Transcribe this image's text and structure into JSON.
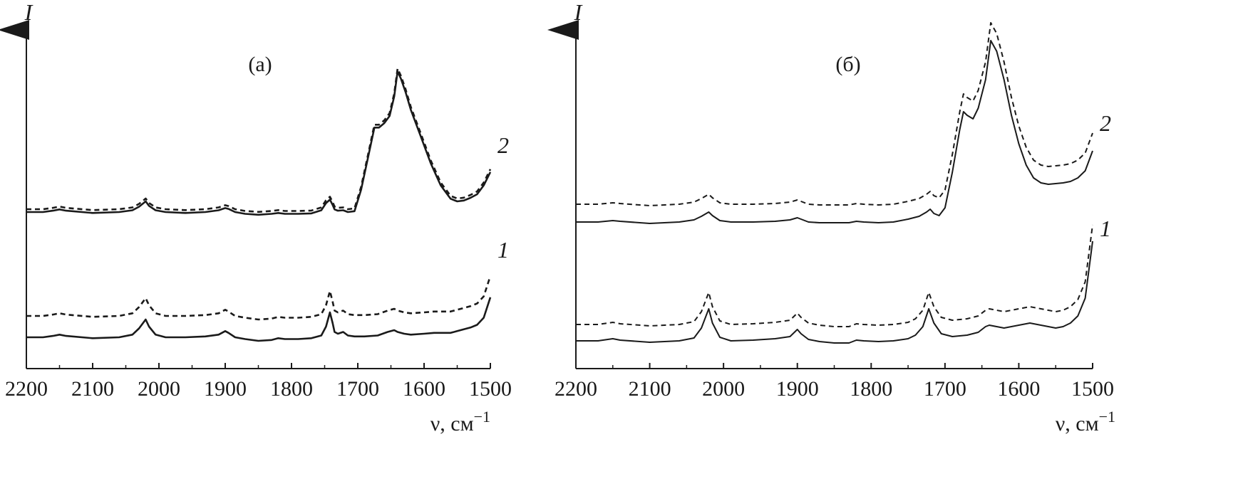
{
  "chart_data": [
    {
      "type": "line",
      "panel_label": "(а)",
      "y_axis_label": "I",
      "x_axis_label": "ν, см",
      "x_axis_label_superscript": "−1",
      "xlim": [
        2200,
        1500
      ],
      "x_ticks": [
        "2200",
        "2100",
        "2000",
        "1900",
        "1800",
        "1700",
        "1600",
        "1500"
      ],
      "y_ticks": [],
      "curve_labels": [
        "2",
        "1"
      ],
      "series": [
        {
          "label": "2",
          "style": "solid",
          "x": [
            2200,
            2175,
            2160,
            2150,
            2140,
            2100,
            2060,
            2040,
            2030,
            2020,
            2015,
            2005,
            1990,
            1960,
            1930,
            1910,
            1900,
            1895,
            1885,
            1870,
            1850,
            1830,
            1820,
            1810,
            1790,
            1770,
            1755,
            1748,
            1742,
            1738,
            1735,
            1730,
            1722,
            1715,
            1705,
            1695,
            1685,
            1675,
            1668,
            1660,
            1652,
            1645,
            1640,
            1635,
            1628,
            1620,
            1605,
            1590,
            1575,
            1560,
            1550,
            1540,
            1530,
            1520,
            1510,
            1500
          ],
          "y": [
            0,
            0,
            1.5,
            3,
            1.5,
            -1,
            0,
            2,
            6,
            12,
            7,
            2,
            0,
            -1,
            0,
            2,
            4.5,
            3.5,
            0,
            -2,
            -3,
            -2,
            -1,
            -2,
            -2,
            -1.5,
            2,
            10,
            14,
            8,
            3,
            1.5,
            2,
            0,
            1,
            25,
            60,
            95,
            95,
            100,
            108,
            130,
            158,
            150,
            135,
            115,
            85,
            55,
            30,
            15,
            12,
            13,
            16,
            20,
            30,
            45
          ]
        },
        {
          "label": "2",
          "style": "dashed",
          "x": [
            2200,
            2175,
            2160,
            2150,
            2140,
            2100,
            2060,
            2040,
            2030,
            2020,
            2015,
            2005,
            1990,
            1960,
            1930,
            1910,
            1900,
            1895,
            1885,
            1870,
            1850,
            1830,
            1820,
            1810,
            1790,
            1770,
            1755,
            1748,
            1742,
            1738,
            1735,
            1730,
            1722,
            1715,
            1705,
            1695,
            1685,
            1675,
            1668,
            1660,
            1652,
            1645,
            1640,
            1635,
            1628,
            1620,
            1605,
            1590,
            1575,
            1560,
            1550,
            1540,
            1530,
            1520,
            1510,
            1500
          ],
          "y": [
            0,
            0,
            1.5,
            3,
            1.5,
            -1,
            0,
            2,
            6,
            12,
            7,
            2,
            0,
            -1,
            0,
            2,
            4.5,
            3.5,
            0,
            -2,
            -3,
            -2,
            -1,
            -2,
            -2,
            -1.5,
            2,
            10,
            14,
            8,
            3,
            1.5,
            2,
            0,
            1,
            25,
            60,
            95,
            95,
            100,
            108,
            130,
            158,
            150,
            135,
            115,
            85,
            55,
            30,
            15,
            12,
            13,
            16,
            20,
            30,
            45
          ]
        },
        {
          "label": "1",
          "style": "solid",
          "x": [
            2200,
            2175,
            2160,
            2150,
            2140,
            2100,
            2060,
            2040,
            2030,
            2020,
            2015,
            2005,
            1990,
            1960,
            1930,
            1910,
            1900,
            1895,
            1885,
            1870,
            1850,
            1830,
            1820,
            1810,
            1790,
            1770,
            1755,
            1748,
            1742,
            1738,
            1735,
            1730,
            1722,
            1715,
            1705,
            1690,
            1670,
            1655,
            1645,
            1640,
            1630,
            1620,
            1600,
            1585,
            1570,
            1560,
            1550,
            1540,
            1530,
            1520,
            1510,
            1500
          ],
          "y": [
            0,
            0,
            1.5,
            3,
            1.5,
            -1,
            0,
            3,
            10,
            20,
            12,
            3,
            0,
            0,
            1,
            3,
            7,
            5,
            0,
            -2,
            -4,
            -3,
            -1,
            -2,
            -2,
            -1,
            2,
            12,
            28,
            16,
            6,
            4,
            6,
            2,
            1,
            1,
            2,
            6,
            8,
            6,
            4,
            3,
            4,
            5,
            5,
            5,
            7,
            9,
            11,
            14,
            22,
            45
          ]
        },
        {
          "label": "1",
          "style": "dashed",
          "x": [
            2200,
            2175,
            2160,
            2150,
            2140,
            2100,
            2060,
            2040,
            2030,
            2020,
            2015,
            2005,
            1990,
            1960,
            1930,
            1910,
            1900,
            1895,
            1885,
            1870,
            1850,
            1830,
            1820,
            1810,
            1790,
            1770,
            1755,
            1748,
            1742,
            1738,
            1735,
            1730,
            1722,
            1715,
            1705,
            1690,
            1670,
            1655,
            1645,
            1640,
            1630,
            1620,
            1600,
            1585,
            1570,
            1560,
            1550,
            1540,
            1530,
            1520,
            1510,
            1500
          ],
          "y": [
            0,
            0,
            1.5,
            3,
            1.5,
            -1,
            0,
            3,
            10,
            20,
            12,
            3,
            0,
            0,
            1,
            3,
            7,
            5,
            0,
            -2,
            -4,
            -3,
            -1,
            -2,
            -2,
            -1,
            2,
            12,
            28,
            16,
            6,
            4,
            6,
            2,
            1,
            1,
            2,
            6,
            8,
            6,
            4,
            3,
            4,
            5,
            5,
            5,
            7,
            9,
            11,
            14,
            22,
            45
          ]
        }
      ]
    },
    {
      "type": "line",
      "panel_label": "(б)",
      "y_axis_label": "I",
      "x_axis_label": "ν, см",
      "x_axis_label_superscript": "−1",
      "xlim": [
        2200,
        1500
      ],
      "x_ticks": [
        "2200",
        "2100",
        "2000",
        "1900",
        "1800",
        "1700",
        "1600",
        "1500"
      ],
      "y_ticks": [],
      "curve_labels": [
        "2",
        "1"
      ],
      "series": [
        {
          "label": "2",
          "style": "solid",
          "x": [
            2200,
            2170,
            2160,
            2150,
            2140,
            2100,
            2060,
            2040,
            2030,
            2020,
            2015,
            2005,
            1990,
            1960,
            1930,
            1910,
            1900,
            1895,
            1885,
            1870,
            1850,
            1830,
            1820,
            1810,
            1790,
            1770,
            1750,
            1735,
            1725,
            1720,
            1715,
            1708,
            1700,
            1690,
            1680,
            1675,
            1670,
            1662,
            1655,
            1645,
            1638,
            1630,
            1620,
            1610,
            1600,
            1590,
            1580,
            1570,
            1560,
            1550,
            1540,
            1530,
            1520,
            1510,
            1500
          ],
          "y": [
            0,
            0,
            1,
            2,
            1,
            -2,
            0,
            3,
            8,
            14,
            9,
            2,
            0,
            0,
            1,
            3,
            6,
            4,
            0,
            -1,
            -1,
            -1,
            1,
            0,
            -1,
            0,
            4,
            8,
            14,
            18,
            12,
            9,
            20,
            70,
            130,
            155,
            150,
            145,
            160,
            200,
            255,
            240,
            200,
            150,
            110,
            80,
            62,
            55,
            53,
            54,
            55,
            57,
            62,
            72,
            100
          ]
        },
        {
          "label": "2",
          "style": "dashed",
          "x": [
            2200,
            2170,
            2160,
            2150,
            2140,
            2100,
            2060,
            2040,
            2030,
            2020,
            2015,
            2005,
            1990,
            1960,
            1930,
            1910,
            1900,
            1895,
            1885,
            1870,
            1850,
            1830,
            1820,
            1810,
            1790,
            1770,
            1750,
            1735,
            1725,
            1720,
            1715,
            1708,
            1700,
            1690,
            1680,
            1675,
            1670,
            1662,
            1655,
            1645,
            1638,
            1630,
            1620,
            1610,
            1600,
            1590,
            1580,
            1570,
            1560,
            1550,
            1540,
            1530,
            1520,
            1510,
            1500
          ],
          "y": [
            0,
            0,
            1,
            2,
            1,
            -2,
            0,
            3,
            8,
            14,
            9,
            2,
            0,
            0,
            1,
            3,
            6,
            4,
            0,
            -1,
            -1,
            -1,
            1,
            0,
            -1,
            0,
            4,
            8,
            14,
            18,
            12,
            9,
            20,
            70,
            130,
            155,
            150,
            145,
            160,
            200,
            255,
            240,
            200,
            150,
            110,
            80,
            62,
            55,
            53,
            54,
            55,
            57,
            62,
            72,
            100
          ]
        },
        {
          "label": "1",
          "style": "solid",
          "x": [
            2200,
            2170,
            2160,
            2150,
            2140,
            2100,
            2060,
            2040,
            2030,
            2020,
            2015,
            2005,
            1990,
            1960,
            1930,
            1910,
            1900,
            1895,
            1885,
            1870,
            1850,
            1830,
            1820,
            1810,
            1790,
            1770,
            1750,
            1740,
            1730,
            1722,
            1715,
            1705,
            1690,
            1670,
            1655,
            1645,
            1640,
            1630,
            1620,
            1600,
            1585,
            1570,
            1560,
            1550,
            1540,
            1530,
            1520,
            1510,
            1500
          ],
          "y": [
            0,
            0,
            1.5,
            3,
            1,
            -2,
            0,
            4,
            18,
            45,
            25,
            5,
            0,
            1,
            3,
            6,
            16,
            10,
            2,
            -1,
            -3,
            -3,
            1,
            0,
            -1,
            0,
            3,
            8,
            20,
            45,
            25,
            10,
            6,
            8,
            12,
            20,
            22,
            20,
            18,
            22,
            25,
            22,
            20,
            18,
            20,
            25,
            35,
            60,
            140
          ]
        },
        {
          "label": "1",
          "style": "dashed",
          "x": [
            2200,
            2170,
            2160,
            2150,
            2140,
            2100,
            2060,
            2040,
            2030,
            2020,
            2015,
            2005,
            1990,
            1960,
            1930,
            1910,
            1900,
            1895,
            1885,
            1870,
            1850,
            1830,
            1820,
            1810,
            1790,
            1770,
            1750,
            1740,
            1730,
            1722,
            1715,
            1705,
            1690,
            1670,
            1655,
            1645,
            1640,
            1630,
            1620,
            1600,
            1585,
            1570,
            1560,
            1550,
            1540,
            1530,
            1520,
            1510,
            1500
          ],
          "y": [
            0,
            0,
            1.5,
            3,
            1,
            -2,
            0,
            4,
            18,
            45,
            25,
            5,
            0,
            1,
            3,
            6,
            16,
            10,
            2,
            -1,
            -3,
            -3,
            1,
            0,
            -1,
            0,
            3,
            8,
            20,
            45,
            25,
            10,
            6,
            8,
            12,
            20,
            22,
            20,
            18,
            22,
            25,
            22,
            20,
            18,
            20,
            25,
            35,
            60,
            140
          ]
        }
      ]
    }
  ]
}
